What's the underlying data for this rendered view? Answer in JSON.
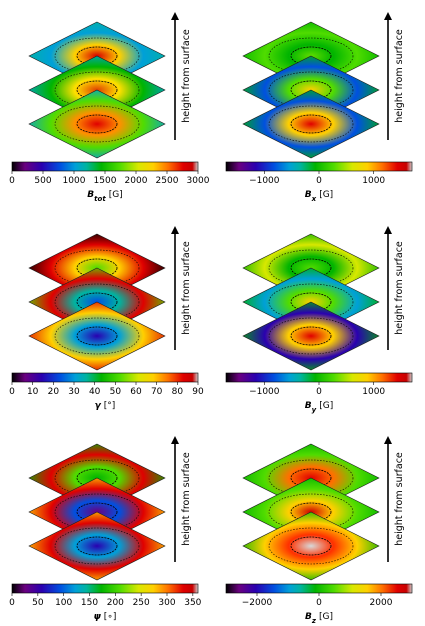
{
  "figure": {
    "height_label": "height from surface"
  },
  "chart_data": [
    {
      "type": "heatmap",
      "quantity": "B_tot",
      "colorbar_label": {
        "symbol": "B",
        "sub": "tot",
        "unit": "[G]"
      },
      "ticks": [
        0,
        500,
        1000,
        1500,
        2000,
        2500,
        3000
      ],
      "vmin": 0,
      "vmax": 3000,
      "cmap": "spectral",
      "layers": 3,
      "pattern": "umbra_high"
    },
    {
      "type": "heatmap",
      "quantity": "B_x",
      "colorbar_label": {
        "symbol": "B",
        "sub": "x",
        "unit": "[G]"
      },
      "ticks": [
        -1000,
        0,
        1000
      ],
      "vmin": -1700,
      "vmax": 1700,
      "cmap": "spectral",
      "layers": 3,
      "pattern": "horizontal_x"
    },
    {
      "type": "heatmap",
      "quantity": "gamma",
      "colorbar_label": {
        "symbol": "γ",
        "sub": "",
        "unit": "[°]"
      },
      "ticks": [
        0,
        10,
        20,
        30,
        40,
        50,
        60,
        70,
        80,
        90
      ],
      "vmin": 0,
      "vmax": 90,
      "cmap": "spectral",
      "layers": 3,
      "pattern": "inclination"
    },
    {
      "type": "heatmap",
      "quantity": "B_y",
      "colorbar_label": {
        "symbol": "B",
        "sub": "y",
        "unit": "[G]"
      },
      "ticks": [
        -1000,
        0,
        1000
      ],
      "vmin": -1700,
      "vmax": 1700,
      "cmap": "spectral",
      "layers": 3,
      "pattern": "horizontal_y"
    },
    {
      "type": "heatmap",
      "quantity": "psi",
      "colorbar_label": {
        "symbol": "ψ",
        "sub": "",
        "unit": "[∘]"
      },
      "ticks": [
        0,
        50,
        100,
        150,
        200,
        250,
        300,
        350
      ],
      "vmin": 0,
      "vmax": 360,
      "cmap": "spectral",
      "layers": 3,
      "pattern": "azimuth"
    },
    {
      "type": "heatmap",
      "quantity": "B_z",
      "colorbar_label": {
        "symbol": "B",
        "sub": "z",
        "unit": "[G]"
      },
      "ticks": [
        -2000,
        0,
        2000
      ],
      "vmin": -3000,
      "vmax": 3000,
      "cmap": "spectral",
      "layers": 3,
      "pattern": "umbra_vertical"
    }
  ]
}
